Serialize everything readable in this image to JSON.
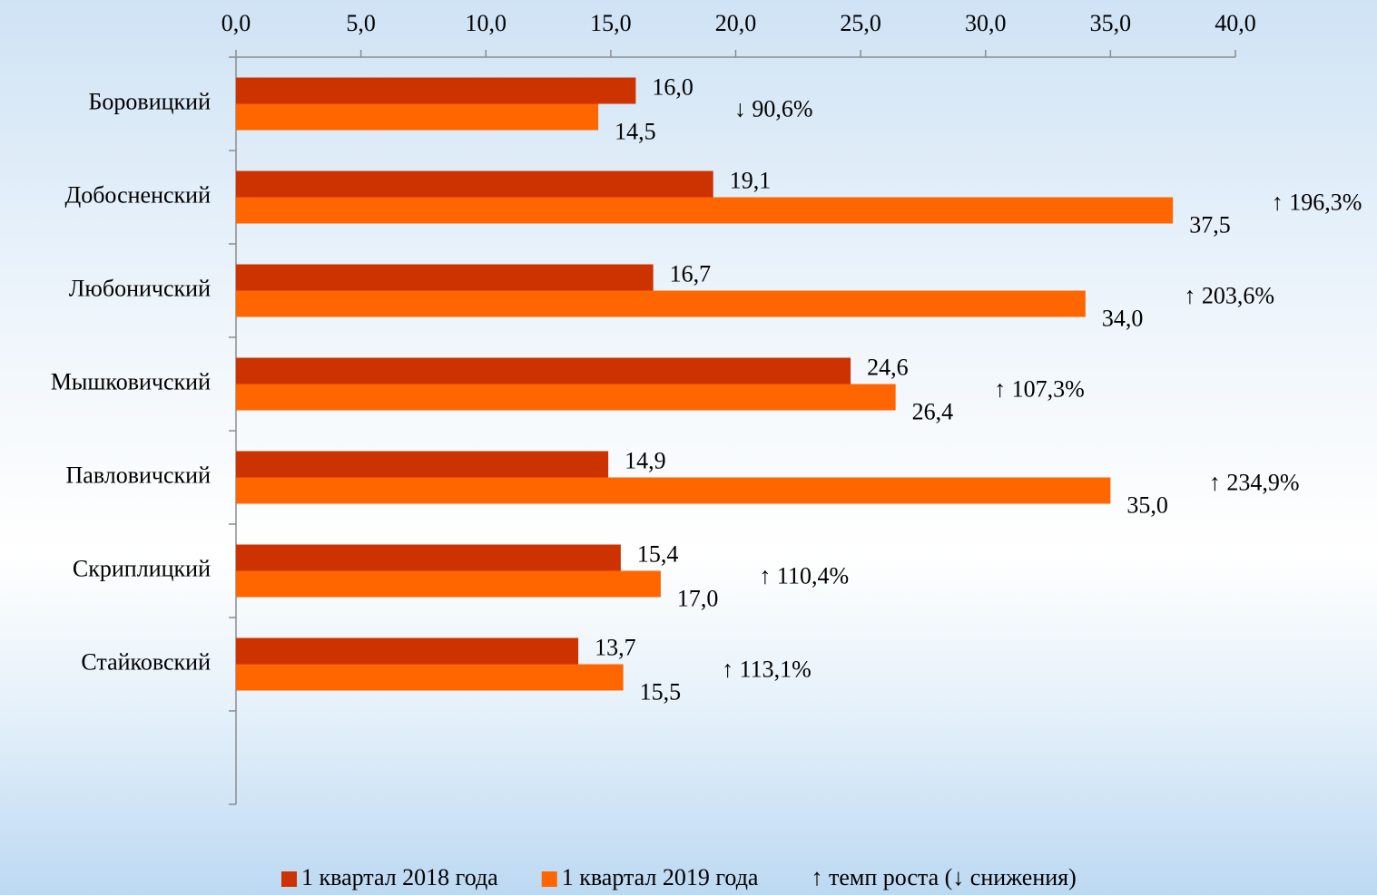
{
  "chart_data": {
    "type": "hbar",
    "categories": [
      "Боровицкий",
      "Добосненский",
      "Любоничский",
      "Мышковичский",
      "Павловичский",
      "Скриплицкий",
      "Стайковский",
      null
    ],
    "series": [
      {
        "name": "1 квартал 2018 года",
        "color": "#cc3300",
        "values": [
          16.0,
          19.1,
          16.7,
          24.6,
          14.9,
          15.4,
          13.7,
          null
        ],
        "value_labels": [
          "16,0",
          "19,1",
          "16,7",
          "24,6",
          "14,9",
          "15,4",
          "13,7",
          null
        ]
      },
      {
        "name": "1 квартал 2019 года",
        "color": "#ff6600",
        "values": [
          14.5,
          37.5,
          34.0,
          26.4,
          35.0,
          17.0,
          15.5,
          null
        ],
        "value_labels": [
          "14,5",
          "37,5",
          "34,0",
          "26,4",
          "35,0",
          "17,0",
          "15,5",
          null
        ]
      }
    ],
    "annotations": [
      "↓ 90,6%",
      "↑ 196,3%",
      "↑ 203,6%",
      "↑ 107,3%",
      "↑ 234,9%",
      "↑ 110,4%",
      "↑ 113,1%",
      null
    ],
    "legend_note": "↑ темп роста (↓ снижения)",
    "xlim": [
      0,
      40
    ],
    "xticks": [
      {
        "value": 0,
        "label": "0,0"
      },
      {
        "value": 5,
        "label": "5,0"
      },
      {
        "value": 10,
        "label": "10,0"
      },
      {
        "value": 15,
        "label": "15,0"
      },
      {
        "value": 20,
        "label": "20,0"
      },
      {
        "value": 25,
        "label": "25,0"
      },
      {
        "value": 30,
        "label": "30,0"
      },
      {
        "value": 35,
        "label": "35,0"
      },
      {
        "value": 40,
        "label": "40,0"
      }
    ],
    "legend": "bottom"
  }
}
